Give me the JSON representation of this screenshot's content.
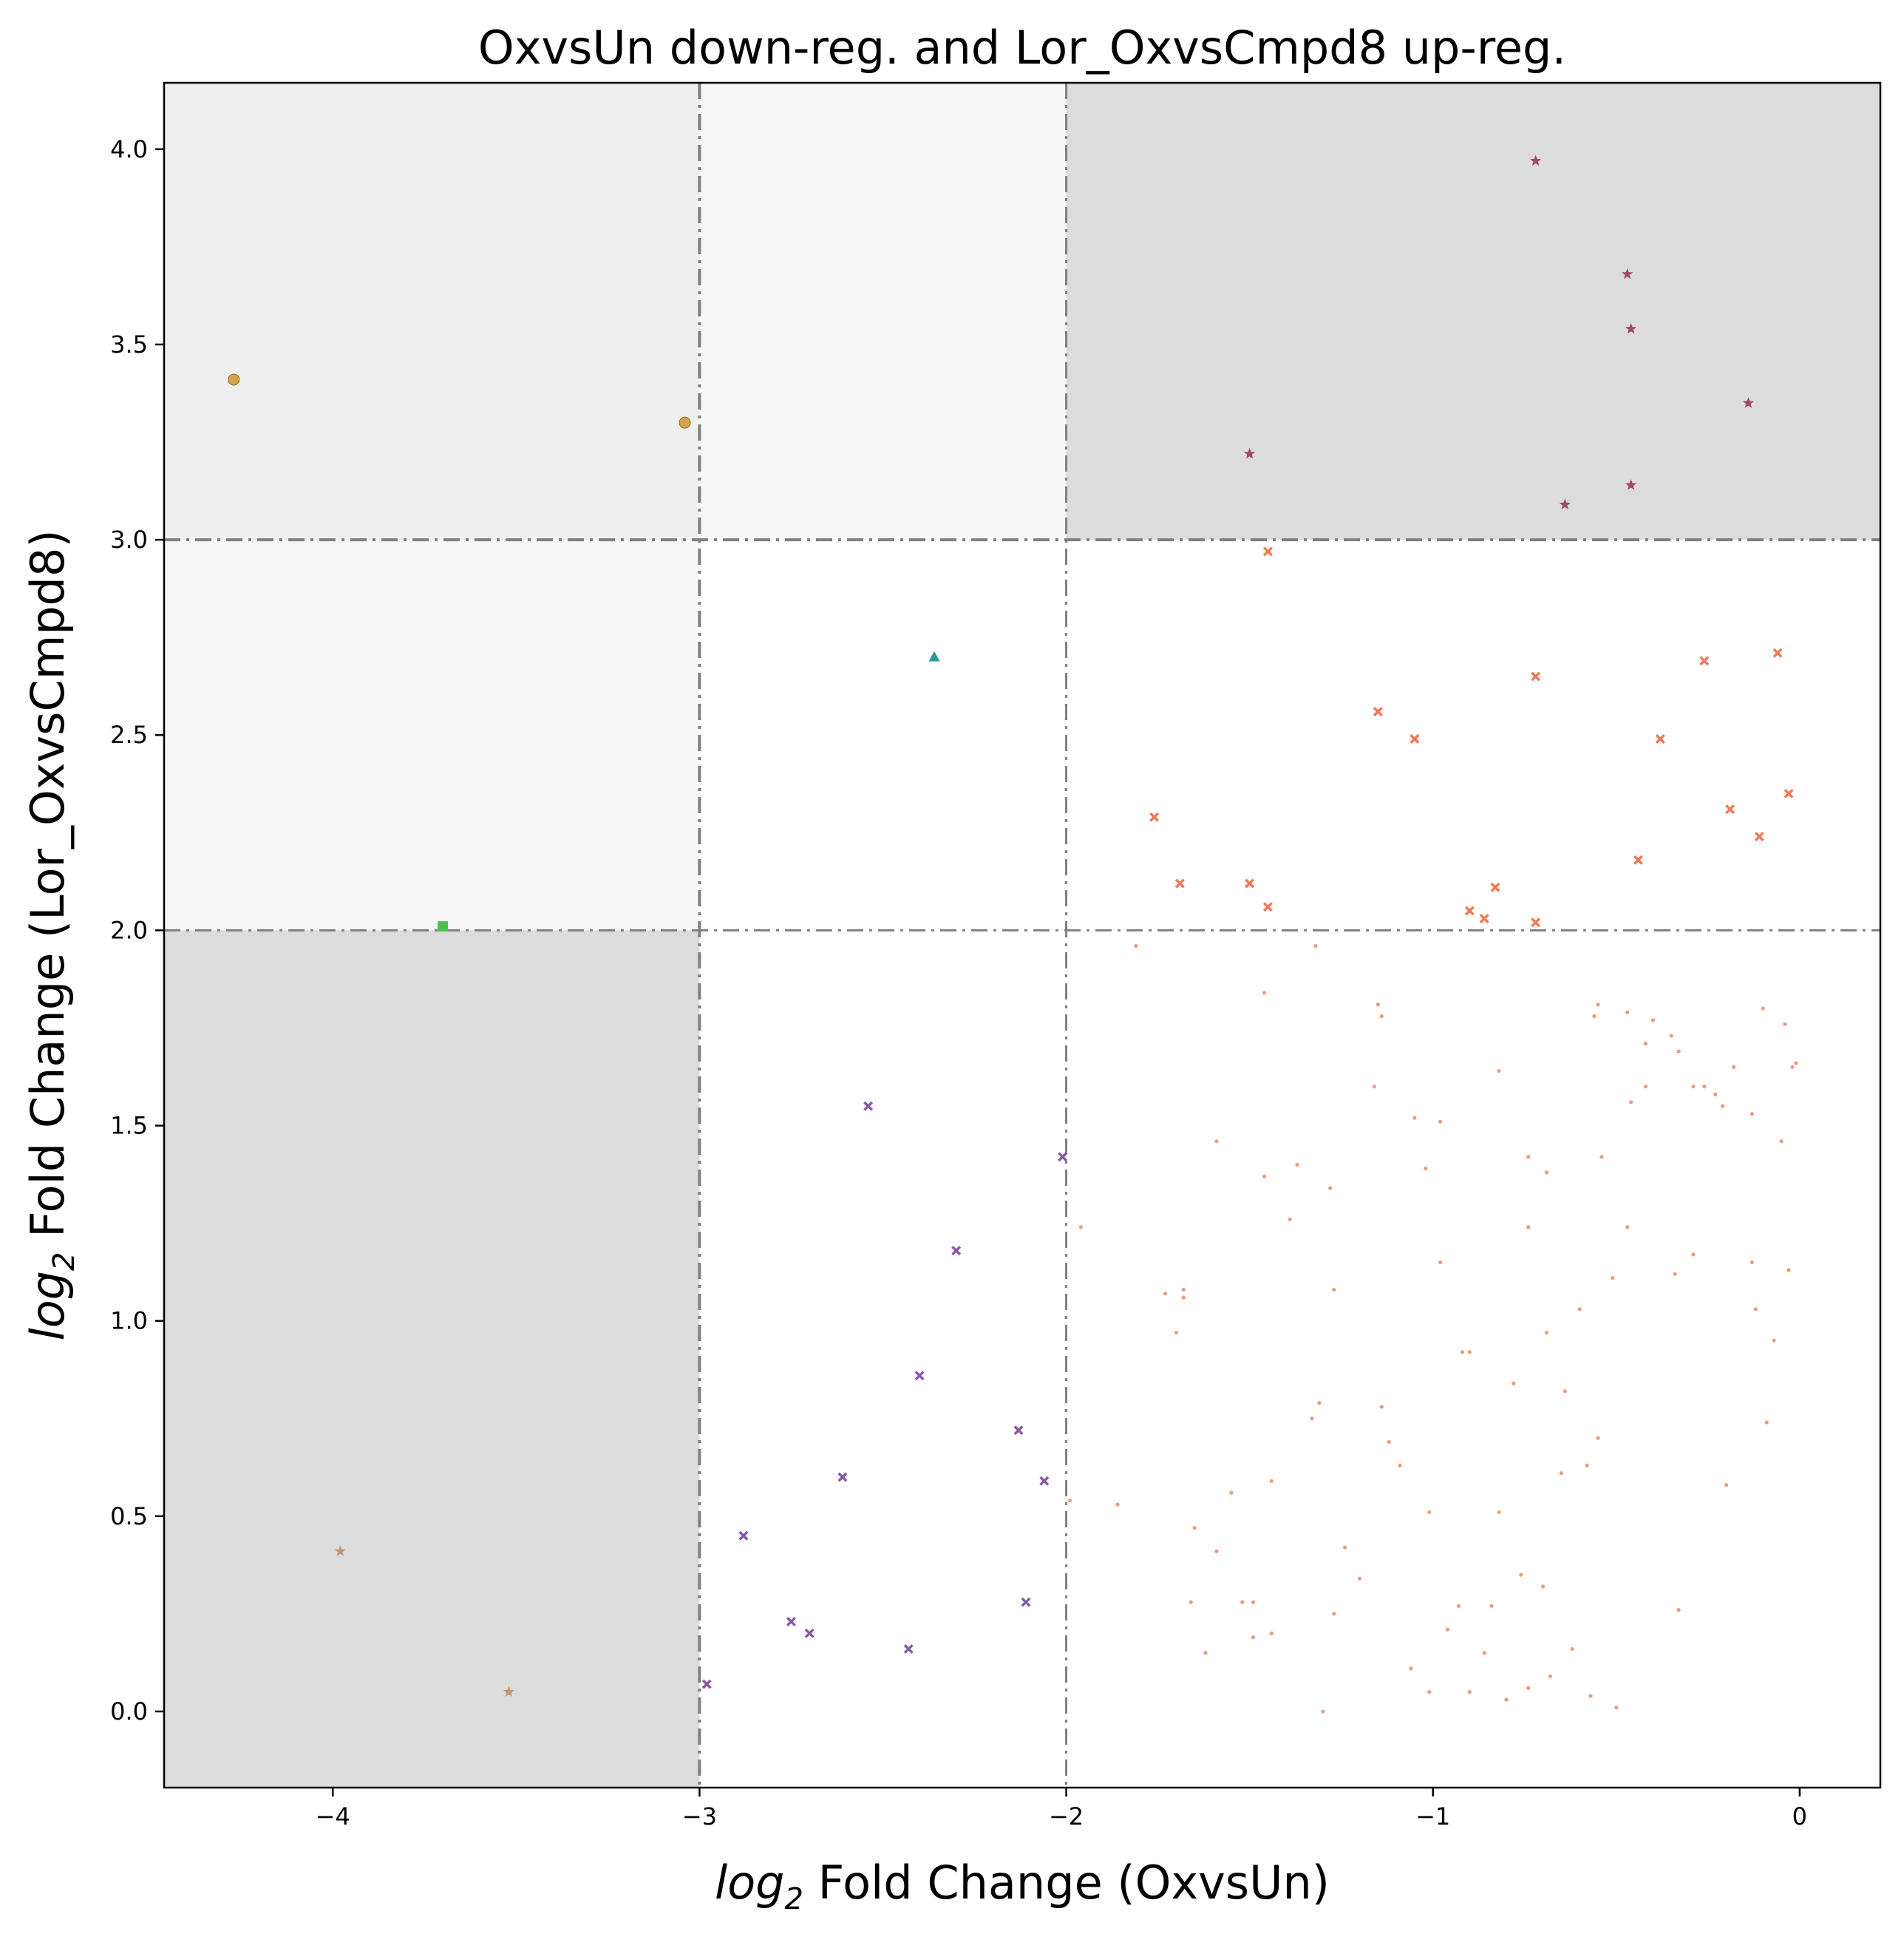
{
  "chart_data": {
    "type": "scatter",
    "title": "OxvsUn down-reg. and Lor_OxvsCmpd8 up-reg.",
    "xlabel": {
      "prefix": "log",
      "sub": "2",
      "suffix": " Fold Change (OxvsUn)"
    },
    "ylabel": {
      "prefix": "log",
      "sub": "2",
      "suffix": " Fold Change (Lor_OxvsCmpd8)"
    },
    "xlim": [
      -4.46,
      0.22
    ],
    "ylim": [
      -0.195,
      4.17
    ],
    "xticks": [
      -4,
      -3,
      -2,
      -1,
      0
    ],
    "xtick_labels": [
      "−4",
      "−3",
      "−2",
      "−1",
      "0"
    ],
    "yticks": [
      0.0,
      0.5,
      1.0,
      1.5,
      2.0,
      2.5,
      3.0,
      3.5,
      4.0
    ],
    "ytick_labels": [
      "0.0",
      "0.5",
      "1.0",
      "1.5",
      "2.0",
      "2.5",
      "3.0",
      "3.5",
      "4.0"
    ],
    "grid": false,
    "legend": "none",
    "thresholds": {
      "x": [
        -3,
        -2
      ],
      "y": [
        2,
        3
      ]
    },
    "shaded_regions": [
      {
        "x": [
          -4.46,
          -3
        ],
        "y": [
          3,
          4.17
        ],
        "color": "#efefef"
      },
      {
        "x": [
          -3,
          -2
        ],
        "y": [
          3,
          4.17
        ],
        "color": "#f7f7f7"
      },
      {
        "x": [
          -2,
          0.22
        ],
        "y": [
          3,
          4.17
        ],
        "color": "#dcdcdc"
      },
      {
        "x": [
          -4.46,
          -3
        ],
        "y": [
          2,
          3
        ],
        "color": "#f7f7f7"
      },
      {
        "x": [
          -4.46,
          -3
        ],
        "y": [
          -0.195,
          2
        ],
        "color": "#dcdcdc"
      }
    ],
    "threshold_color": "#808080",
    "series": [
      {
        "marker": "circle",
        "color": "#d4a34a",
        "x": [
          -4.27,
          -3.04
        ],
        "y": [
          3.41,
          3.3
        ]
      },
      {
        "marker": "star",
        "color": "#a14a60",
        "x": [
          -0.72,
          -0.47,
          -0.46,
          -0.14,
          -1.5,
          -0.46,
          -0.64
        ],
        "y": [
          3.97,
          3.68,
          3.54,
          3.35,
          3.22,
          3.14,
          3.09
        ]
      },
      {
        "marker": "triangle",
        "color": "#2a9aa0",
        "x": [
          -2.36
        ],
        "y": [
          2.7
        ]
      },
      {
        "marker": "square",
        "color": "#4cc24c",
        "x": [
          -3.7
        ],
        "y": [
          2.01
        ]
      },
      {
        "marker": "star",
        "color": "#c4956a",
        "x": [
          -3.98,
          -3.52
        ],
        "y": [
          0.41,
          0.05
        ]
      },
      {
        "marker": "x",
        "color": "#f07a55",
        "x": [
          -1.45,
          -0.06,
          -0.26,
          -0.72,
          -1.15,
          -1.05,
          -0.38,
          -0.03,
          -0.19,
          -0.11,
          -0.44,
          -1.76,
          -1.69,
          -1.5,
          -1.45,
          -0.83,
          -0.9,
          -0.86,
          -0.72
        ],
        "y": [
          2.97,
          2.71,
          2.69,
          2.65,
          2.56,
          2.49,
          2.49,
          2.35,
          2.31,
          2.24,
          2.18,
          2.29,
          2.12,
          2.12,
          2.06,
          2.11,
          2.05,
          2.03,
          2.02
        ]
      },
      {
        "marker": "x",
        "color": "#8a5aa8",
        "x": [
          -2.54,
          -2.01,
          -2.3,
          -2.4,
          -2.13,
          -2.06,
          -2.61,
          -2.88,
          -2.75,
          -2.7,
          -2.43,
          -2.11,
          -2.98
        ],
        "y": [
          1.55,
          1.42,
          1.18,
          0.86,
          0.72,
          0.59,
          0.6,
          0.45,
          0.23,
          0.2,
          0.16,
          0.28,
          0.07
        ]
      },
      {
        "marker": "dot",
        "color": "#e8896a",
        "x": [
          -1.81,
          -1.32,
          -1.73,
          -1.46,
          -1.15,
          -1.14,
          -0.55,
          -0.47,
          -0.42,
          -0.4,
          -0.35,
          -0.33,
          -0.1,
          -0.04,
          -0.01,
          -0.02,
          -0.42,
          -0.46,
          -0.21,
          -0.13,
          -0.26,
          -0.05,
          -1.16,
          -1.05,
          -0.98,
          -1.02,
          -1.28,
          -1.59,
          -1.39,
          -1.96,
          -0.54,
          -0.51,
          -0.29,
          -0.13,
          -0.03,
          -0.47,
          -0.74,
          -1.68,
          -1.68,
          -1.27,
          -0.9,
          -0.98,
          -0.6,
          -0.69,
          -1.7,
          -1.33,
          -1.31,
          -1.12,
          -1.44,
          -1.86,
          -1.99,
          -1.65,
          -1.59,
          -1.55,
          -1.01,
          -1.09,
          -1.14,
          -1.27,
          -0.96,
          -0.84,
          -0.76,
          -0.7,
          -0.64,
          -1.49,
          -1.44,
          -1.2,
          -0.86,
          -0.8,
          -0.74,
          -0.68,
          -0.58,
          -1.3,
          -1.01,
          -0.93,
          -0.82,
          -0.78,
          -0.55,
          -0.62,
          -0.5,
          -0.34,
          -0.92,
          -1.66,
          -1.62,
          -1.52,
          -0.9,
          -0.65,
          -0.57,
          -0.29,
          -0.23,
          -0.56,
          -1.37,
          -1.46,
          -0.18,
          -0.74,
          -0.82,
          -0.69,
          -1.06,
          -1.24,
          -1.49,
          -0.33,
          -0.2,
          -0.09,
          -0.12,
          -0.07
        ],
        "y": [
          1.96,
          1.96,
          1.07,
          1.84,
          1.81,
          1.78,
          1.81,
          1.79,
          1.71,
          1.77,
          1.73,
          1.69,
          1.8,
          1.76,
          1.66,
          1.65,
          1.6,
          1.56,
          1.55,
          1.53,
          1.6,
          1.46,
          1.6,
          1.52,
          1.51,
          1.39,
          1.34,
          1.46,
          1.26,
          1.24,
          1.42,
          1.11,
          1.17,
          1.15,
          1.13,
          1.24,
          1.24,
          1.08,
          1.06,
          1.08,
          0.92,
          1.15,
          1.03,
          0.97,
          0.97,
          0.75,
          0.79,
          0.69,
          0.59,
          0.53,
          0.54,
          0.47,
          0.41,
          0.56,
          0.51,
          0.63,
          0.78,
          0.25,
          0.21,
          0.27,
          0.35,
          0.32,
          0.82,
          0.28,
          0.2,
          0.34,
          0.15,
          0.03,
          0.06,
          0.09,
          0.63,
          0.0,
          0.05,
          0.27,
          0.51,
          0.84,
          0.7,
          0.16,
          0.01,
          1.12,
          0.92,
          0.28,
          0.15,
          0.28,
          0.05,
          0.61,
          0.04,
          1.6,
          1.58,
          1.78,
          1.4,
          1.37,
          1.65,
          1.42,
          1.64,
          1.38,
          0.11,
          0.42,
          0.19,
          0.26,
          0.58,
          0.74,
          1.03,
          0.95
        ]
      }
    ]
  }
}
